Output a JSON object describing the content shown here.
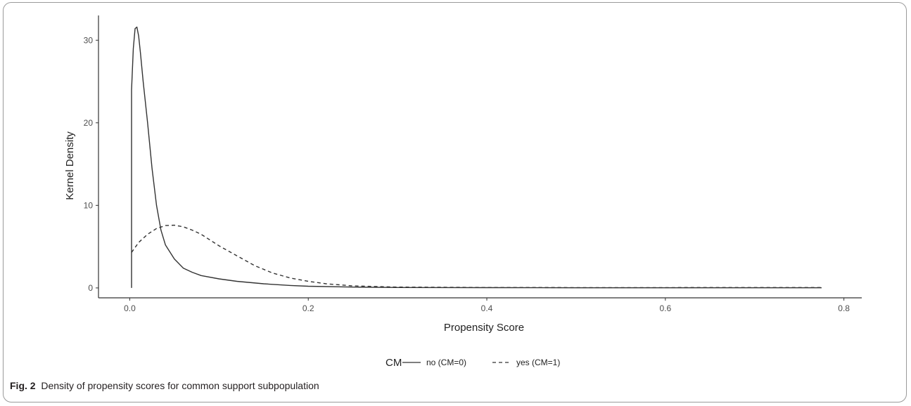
{
  "caption": {
    "label": "Fig. 2",
    "text": "Density of propensity scores for common support subpopulation"
  },
  "chart_data": {
    "type": "line",
    "title": "",
    "xlabel": "Propensity Score",
    "ylabel": "Kernel Density",
    "xlim": [
      -0.035,
      0.82
    ],
    "ylim": [
      -1.2,
      33
    ],
    "x_ticks": [
      0.0,
      0.2,
      0.4,
      0.6,
      0.8
    ],
    "x_tick_labels": [
      "0.0",
      "0.2",
      "0.4",
      "0.6",
      "0.8"
    ],
    "y_ticks": [
      0,
      10,
      20,
      30
    ],
    "y_tick_labels": [
      "0",
      "10",
      "20",
      "30"
    ],
    "grid": false,
    "legend": {
      "title": "CM",
      "position": "bottom",
      "entries": [
        {
          "label": "no (CM=0)",
          "linestyle": "solid"
        },
        {
          "label": "yes (CM=1)",
          "linestyle": "dashed"
        }
      ]
    },
    "series": [
      {
        "name": "no (CM=0)",
        "linestyle": "solid",
        "color": "#333333",
        "x": [
          0.002,
          0.002,
          0.004,
          0.006,
          0.008,
          0.01,
          0.012,
          0.015,
          0.02,
          0.025,
          0.03,
          0.035,
          0.04,
          0.05,
          0.06,
          0.07,
          0.08,
          0.1,
          0.12,
          0.15,
          0.18,
          0.2,
          0.25,
          0.3,
          0.4,
          0.5,
          0.6,
          0.7,
          0.775
        ],
        "y": [
          0,
          24,
          29,
          31.4,
          31.6,
          30.5,
          28.5,
          25,
          20,
          14.5,
          10,
          7,
          5.2,
          3.5,
          2.4,
          1.9,
          1.5,
          1.1,
          0.8,
          0.5,
          0.3,
          0.2,
          0.1,
          0.05,
          0.03,
          0.02,
          0.02,
          0.02,
          0.02
        ]
      },
      {
        "name": "yes (CM=1)",
        "linestyle": "dashed",
        "color": "#333333",
        "x": [
          0.002,
          0.01,
          0.02,
          0.03,
          0.04,
          0.05,
          0.06,
          0.07,
          0.08,
          0.09,
          0.1,
          0.12,
          0.14,
          0.16,
          0.18,
          0.2,
          0.22,
          0.25,
          0.3,
          0.4,
          0.5,
          0.6,
          0.7,
          0.775
        ],
        "y": [
          4.3,
          5.5,
          6.5,
          7.2,
          7.55,
          7.6,
          7.4,
          7.0,
          6.5,
          5.8,
          5.1,
          3.9,
          2.7,
          1.8,
          1.2,
          0.8,
          0.5,
          0.25,
          0.1,
          0.05,
          0.04,
          0.04,
          0.05,
          0.05
        ]
      }
    ]
  }
}
